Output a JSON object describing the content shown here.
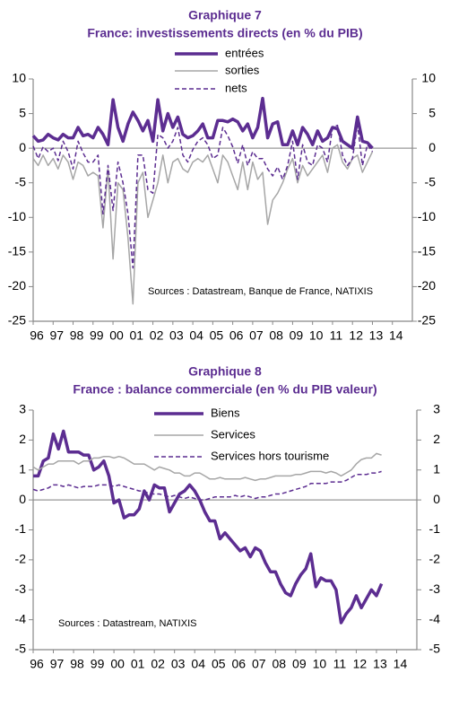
{
  "chart_data": [
    {
      "type": "line",
      "title": "Graphique  7",
      "subtitle": "France: investissements directs (en % du PIB)",
      "annotation": "Sources : Datastream, Banque de France, NATIXIS",
      "x": [
        1996,
        1996.25,
        1996.5,
        1996.75,
        1997,
        1997.25,
        1997.5,
        1997.75,
        1998,
        1998.25,
        1998.5,
        1998.75,
        1999,
        1999.25,
        1999.5,
        1999.75,
        2000,
        2000.25,
        2000.5,
        2000.75,
        2001,
        2001.25,
        2001.5,
        2001.75,
        2002,
        2002.25,
        2002.5,
        2002.75,
        2003,
        2003.25,
        2003.5,
        2003.75,
        2004,
        2004.25,
        2004.5,
        2004.75,
        2005,
        2005.25,
        2005.5,
        2005.75,
        2006,
        2006.25,
        2006.5,
        2006.75,
        2007,
        2007.25,
        2007.5,
        2007.75,
        2008,
        2008.25,
        2008.5,
        2008.75,
        2009,
        2009.25,
        2009.5,
        2009.75,
        2010,
        2010.25,
        2010.5,
        2010.75,
        2011,
        2011.25,
        2011.5,
        2011.75,
        2012,
        2012.25,
        2012.5,
        2012.75,
        2013
      ],
      "series": [
        {
          "name": "entrées",
          "color": "#5c2d91",
          "style": "solid",
          "width": 3.5,
          "values": [
            1.8,
            1,
            1.2,
            2,
            1.5,
            1.2,
            2,
            1.5,
            1.5,
            3,
            1.8,
            2,
            1.5,
            3,
            2,
            0.5,
            7,
            3,
            1,
            3.5,
            5.2,
            4,
            2.5,
            4,
            1,
            7,
            2.5,
            5,
            3,
            4.5,
            2,
            1.5,
            1.8,
            2.5,
            3.5,
            1.5,
            1.5,
            4,
            4,
            3.8,
            4.2,
            3.8,
            2.5,
            3.5,
            1.5,
            3,
            7.2,
            1.5,
            3.5,
            3.8,
            0.5,
            0.5,
            2.5,
            0.5,
            3,
            2,
            0.5,
            2.5,
            1,
            1.5,
            3,
            2.8,
            1,
            0.5,
            0,
            4.5,
            1,
            0.8,
            0
          ]
        },
        {
          "name": "sorties",
          "color": "#a6a6a6",
          "style": "solid",
          "width": 1.5,
          "values": [
            -1.5,
            -2.5,
            -1,
            -2.5,
            -1.5,
            -3,
            -1,
            -2,
            -4.5,
            -2,
            -2.5,
            -4,
            -3.5,
            -4,
            -11.5,
            -3,
            -16,
            -5,
            -6,
            -13,
            -22.5,
            -5,
            -3.5,
            -10,
            -7.5,
            -5,
            -1,
            -5,
            -2,
            -1.5,
            -3,
            -3.5,
            -2,
            -1.5,
            -2,
            -1,
            -3,
            -5,
            -1,
            -2,
            -4,
            -6,
            -2,
            -6,
            -2,
            -4.5,
            -3.5,
            -11,
            -7.5,
            -6.5,
            -5,
            -3,
            -1.5,
            -5,
            -2.5,
            -4,
            -3,
            -2,
            -1,
            -3.5,
            0,
            0.5,
            -2,
            -3,
            -1.5,
            -1,
            -3.5,
            -2,
            -0.5
          ]
        },
        {
          "name": "nets",
          "color": "#5c2d91",
          "style": "dashed",
          "width": 1.5,
          "values": [
            0.3,
            -1.5,
            0.2,
            -0.5,
            0,
            -1.8,
            1,
            -0.5,
            -3,
            1,
            -0.7,
            -2,
            -2,
            -1,
            -9.5,
            -2.5,
            -9,
            -2,
            -5,
            -9.5,
            -17.3,
            -1,
            -1,
            -6,
            -6.5,
            2,
            1.5,
            0,
            1,
            3,
            -1,
            -2,
            -0.2,
            1,
            1.5,
            0.5,
            -1.5,
            -1,
            3,
            1.8,
            0.2,
            -2.2,
            0.5,
            -2.5,
            -0.5,
            -1.5,
            -1.5,
            -3,
            -4,
            -2.7,
            -4.5,
            -2.5,
            1,
            -4.5,
            0.5,
            -2,
            -2.5,
            0.5,
            0,
            -2,
            3,
            3.3,
            -1,
            -2.5,
            -1.5,
            3.5,
            -2.5,
            0.5,
            -0.5
          ]
        }
      ],
      "xlim": [
        1996,
        2015
      ],
      "xticks": [
        {
          "value": 1996,
          "label": "96"
        },
        {
          "value": 1997,
          "label": "97"
        },
        {
          "value": 1998,
          "label": "98"
        },
        {
          "value": 1999,
          "label": "99"
        },
        {
          "value": 2000,
          "label": "00"
        },
        {
          "value": 2001,
          "label": "01"
        },
        {
          "value": 2002,
          "label": "02"
        },
        {
          "value": 2003,
          "label": "03"
        },
        {
          "value": 2004,
          "label": "04"
        },
        {
          "value": 2005,
          "label": "05"
        },
        {
          "value": 2006,
          "label": "06"
        },
        {
          "value": 2007,
          "label": "07"
        },
        {
          "value": 2008,
          "label": "08"
        },
        {
          "value": 2009,
          "label": "09"
        },
        {
          "value": 2010,
          "label": "10"
        },
        {
          "value": 2011,
          "label": "11"
        },
        {
          "value": 2012,
          "label": "12"
        },
        {
          "value": 2013,
          "label": "13"
        },
        {
          "value": 2014,
          "label": "14"
        }
      ],
      "ylim": [
        -25,
        10
      ],
      "yticks": [
        -25,
        -20,
        -15,
        -10,
        -5,
        0,
        5,
        10
      ],
      "y2lim": [
        -25,
        10
      ],
      "y2ticks": [
        -25,
        -20,
        -15,
        -10,
        -5,
        0,
        5,
        10
      ],
      "legend": "top"
    },
    {
      "type": "line",
      "title": "Graphique  8",
      "subtitle": "France : balance commerciale (en % du PIB valeur)",
      "annotation": "Sources : Datastream, NATIXIS",
      "x": [
        1996,
        1996.25,
        1996.5,
        1996.75,
        1997,
        1997.25,
        1997.5,
        1997.75,
        1998,
        1998.25,
        1998.5,
        1998.75,
        1999,
        1999.25,
        1999.5,
        1999.75,
        2000,
        2000.25,
        2000.5,
        2000.75,
        2001,
        2001.25,
        2001.5,
        2001.75,
        2002,
        2002.25,
        2002.5,
        2002.75,
        2003,
        2003.25,
        2003.5,
        2003.75,
        2004,
        2004.25,
        2004.5,
        2004.75,
        2005,
        2005.25,
        2005.5,
        2005.75,
        2006,
        2006.25,
        2006.5,
        2006.75,
        2007,
        2007.25,
        2007.5,
        2007.75,
        2008,
        2008.25,
        2008.5,
        2008.75,
        2009,
        2009.25,
        2009.5,
        2009.75,
        2010,
        2010.25,
        2010.5,
        2010.75,
        2011,
        2011.25,
        2011.5,
        2011.75,
        2012,
        2012.25,
        2012.5,
        2012.75,
        2013,
        2013.25
      ],
      "series": [
        {
          "name": "Biens",
          "color": "#5c2d91",
          "style": "solid",
          "width": 3.5,
          "values": [
            0.8,
            0.8,
            1.3,
            1.4,
            2.2,
            1.7,
            2.3,
            1.6,
            1.6,
            1.6,
            1.5,
            1.5,
            1,
            1.1,
            1.3,
            0.8,
            -0.1,
            0,
            -0.6,
            -0.5,
            -0.5,
            -0.3,
            0.3,
            0,
            0.5,
            0.4,
            0.4,
            -0.4,
            -0.1,
            0.2,
            0.3,
            0.5,
            0.3,
            0,
            -0.4,
            -0.7,
            -0.7,
            -1.3,
            -1.1,
            -1.3,
            -1.5,
            -1.7,
            -1.6,
            -1.9,
            -1.6,
            -1.7,
            -2.1,
            -2.4,
            -2.4,
            -2.8,
            -3.1,
            -3.2,
            -2.8,
            -2.5,
            -2.3,
            -1.8,
            -2.9,
            -2.6,
            -2.7,
            -2.7,
            -3,
            -4.1,
            -3.8,
            -3.6,
            -3.2,
            -3.6,
            -3.3,
            -3,
            -3.2,
            -2.8
          ]
        },
        {
          "name": "Services",
          "color": "#a6a6a6",
          "style": "solid",
          "width": 1.5,
          "values": [
            1.1,
            1,
            1.1,
            1.2,
            1.2,
            1.3,
            1.3,
            1.3,
            1.3,
            1.2,
            1.3,
            1.3,
            1.4,
            1.4,
            1.45,
            1.45,
            1.4,
            1.45,
            1.4,
            1.3,
            1.2,
            1.2,
            1.2,
            1.1,
            1,
            1.1,
            1.05,
            1,
            0.9,
            0.9,
            0.8,
            0.8,
            0.9,
            0.9,
            0.8,
            0.7,
            0.7,
            0.75,
            0.7,
            0.7,
            0.7,
            0.7,
            0.75,
            0.7,
            0.65,
            0.7,
            0.7,
            0.75,
            0.8,
            0.8,
            0.8,
            0.8,
            0.85,
            0.85,
            0.9,
            0.95,
            0.95,
            0.95,
            0.9,
            0.95,
            0.9,
            0.8,
            0.9,
            1,
            1.2,
            1.35,
            1.4,
            1.4,
            1.55,
            1.5
          ]
        },
        {
          "name": "Services hors tourisme",
          "color": "#5c2d91",
          "style": "dashed",
          "width": 1.5,
          "values": [
            0.35,
            0.3,
            0.35,
            0.4,
            0.5,
            0.5,
            0.45,
            0.5,
            0.45,
            0.4,
            0.45,
            0.45,
            0.45,
            0.5,
            0.5,
            0.5,
            0.45,
            0.5,
            0.45,
            0.4,
            0.35,
            0.3,
            0.3,
            0.2,
            0.2,
            0.2,
            0.15,
            0.1,
            0.15,
            0.1,
            0.05,
            0.1,
            0.05,
            0,
            0,
            0.05,
            0.1,
            0.1,
            0.1,
            0.1,
            0.15,
            0.1,
            0.15,
            0.1,
            0.05,
            0.1,
            0.1,
            0.15,
            0.2,
            0.2,
            0.25,
            0.3,
            0.35,
            0.4,
            0.45,
            0.55,
            0.55,
            0.55,
            0.55,
            0.6,
            0.6,
            0.6,
            0.65,
            0.75,
            0.85,
            0.85,
            0.85,
            0.9,
            0.9,
            0.95
          ]
        }
      ],
      "xlim": [
        1996,
        2015
      ],
      "xticks": [
        {
          "value": 1996,
          "label": "96"
        },
        {
          "value": 1997,
          "label": "97"
        },
        {
          "value": 1998,
          "label": "98"
        },
        {
          "value": 1999,
          "label": "99"
        },
        {
          "value": 2000,
          "label": "00"
        },
        {
          "value": 2001,
          "label": "01"
        },
        {
          "value": 2002,
          "label": "02"
        },
        {
          "value": 2003,
          "label": "03"
        },
        {
          "value": 2004,
          "label": "04"
        },
        {
          "value": 2005,
          "label": "05"
        },
        {
          "value": 2006,
          "label": "06"
        },
        {
          "value": 2007,
          "label": "07"
        },
        {
          "value": 2008,
          "label": "08"
        },
        {
          "value": 2009,
          "label": "09"
        },
        {
          "value": 2010,
          "label": "10"
        },
        {
          "value": 2011,
          "label": "11"
        },
        {
          "value": 2012,
          "label": "12"
        },
        {
          "value": 2013,
          "label": "13"
        },
        {
          "value": 2014,
          "label": "14"
        }
      ],
      "ylim": [
        -5,
        3
      ],
      "yticks": [
        -5,
        -4,
        -3,
        -2,
        -1,
        0,
        1,
        2,
        3
      ],
      "y2lim": [
        -5,
        3
      ],
      "y2ticks": [
        -5,
        -4,
        -3,
        -2,
        -1,
        0,
        1,
        2,
        3
      ],
      "legend": "top"
    }
  ]
}
